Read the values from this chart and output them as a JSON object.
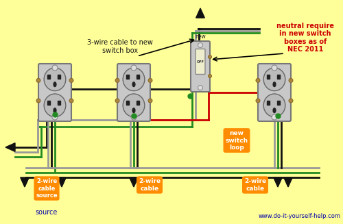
{
  "bg_color": "#FFFF99",
  "wire_black": "#111111",
  "wire_gray": "#999999",
  "wire_green": "#228B22",
  "wire_red": "#CC0000",
  "label_orange_bg": "#FF8C00",
  "label_red_text": "#CC0000",
  "label_blue_text": "#0000AA",
  "website": "www.do-it-yourself-help.com",
  "ann_3wire": "3-wire cable to new\nswitch box",
  "ann_label1_line1": "2-wire",
  "ann_label1_line2": "cable",
  "ann_label1_line3": "source",
  "ann_label2_line1": "2-wire",
  "ann_label2_line2": "cable",
  "ann_label3_line1": "2-wire",
  "ann_label3_line2": "cable",
  "ann_loop_line1": "new",
  "ann_loop_line2": "switch",
  "ann_loop_line3": "loop",
  "ann_nec_line1": "neutral require",
  "ann_nec_line2": "in new switch",
  "ann_nec_line3": "boxes as of",
  "ann_nec_line4": "NEC 2011",
  "ann_new": "new",
  "ann_off": "OFF"
}
